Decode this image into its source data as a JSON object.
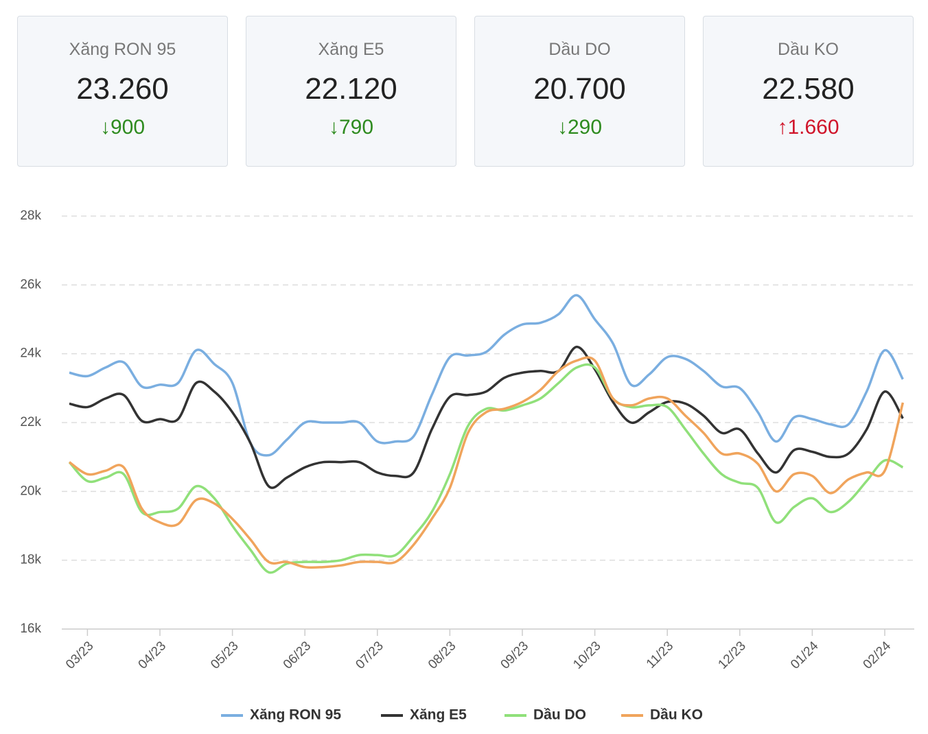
{
  "cards": [
    {
      "label": "Xăng RON 95",
      "value": "23.260",
      "change": "↓900",
      "direction": "down"
    },
    {
      "label": "Xăng E5",
      "value": "22.120",
      "change": "↓790",
      "direction": "down"
    },
    {
      "label": "Dầu DO",
      "value": "20.700",
      "change": "↓290",
      "direction": "down"
    },
    {
      "label": "Dầu KO",
      "value": "22.580",
      "change": "↑1.660",
      "direction": "up"
    }
  ],
  "chart_data": {
    "type": "line",
    "categories": [
      null,
      "03/23",
      null,
      null,
      null,
      "04/23",
      null,
      null,
      null,
      "05/23",
      null,
      null,
      null,
      "06/23",
      null,
      null,
      null,
      "07/23",
      null,
      null,
      null,
      "08/23",
      null,
      null,
      null,
      "09/23",
      null,
      null,
      null,
      "10/23",
      null,
      null,
      null,
      "11/23",
      null,
      null,
      null,
      "12/23",
      null,
      null,
      null,
      "01/24",
      null,
      null,
      null,
      "02/24",
      null
    ],
    "ylim": [
      16000,
      28000
    ],
    "yticks": [
      {
        "value": 16000,
        "label": "16k"
      },
      {
        "value": 18000,
        "label": "18k"
      },
      {
        "value": 20000,
        "label": "20k"
      },
      {
        "value": 22000,
        "label": "22k"
      },
      {
        "value": 24000,
        "label": "24k"
      },
      {
        "value": 26000,
        "label": "26k"
      },
      {
        "value": 28000,
        "label": "28k"
      }
    ],
    "grid": true,
    "legend": "bottom",
    "series": [
      {
        "name": "Xăng RON 95",
        "color": "#7aaee0",
        "values": [
          23450,
          23350,
          23600,
          23750,
          23050,
          23100,
          23150,
          24100,
          23700,
          23150,
          21400,
          21050,
          21500,
          22000,
          22000,
          22000,
          22000,
          21450,
          21450,
          21600,
          22800,
          23900,
          23950,
          24050,
          24550,
          24850,
          24900,
          25150,
          25700,
          25000,
          24300,
          23100,
          23400,
          23900,
          23850,
          23500,
          23050,
          23000,
          22300,
          21450,
          22150,
          22100,
          21950,
          21950,
          22900,
          24100,
          23260
        ]
      },
      {
        "name": "Xăng E5",
        "color": "#333333",
        "values": [
          22550,
          22450,
          22700,
          22800,
          22050,
          22100,
          22100,
          23150,
          22900,
          22300,
          21400,
          20150,
          20400,
          20700,
          20850,
          20850,
          20850,
          20550,
          20450,
          20550,
          21800,
          22750,
          22800,
          22900,
          23300,
          23450,
          23500,
          23500,
          24200,
          23550,
          22600,
          22000,
          22300,
          22600,
          22550,
          22200,
          21700,
          21800,
          21100,
          20550,
          21200,
          21150,
          21000,
          21100,
          21800,
          22900,
          22120
        ]
      },
      {
        "name": "Dầu DO",
        "color": "#90e07a",
        "values": [
          20850,
          20300,
          20400,
          20500,
          19400,
          19400,
          19500,
          20150,
          19800,
          19000,
          18300,
          17650,
          17900,
          17950,
          17950,
          18000,
          18150,
          18150,
          18150,
          18700,
          19400,
          20500,
          21900,
          22400,
          22350,
          22500,
          22700,
          23150,
          23600,
          23600,
          22700,
          22450,
          22500,
          22450,
          21800,
          21100,
          20500,
          20250,
          20100,
          19100,
          19550,
          19800,
          19400,
          19700,
          20300,
          20900,
          20700
        ]
      },
      {
        "name": "Dầu KO",
        "color": "#f0a45c",
        "values": [
          20850,
          20500,
          20600,
          20700,
          19500,
          19100,
          19050,
          19750,
          19650,
          19200,
          18600,
          17950,
          17950,
          17800,
          17800,
          17850,
          17950,
          17950,
          17950,
          18450,
          19200,
          20100,
          21700,
          22300,
          22400,
          22600,
          22950,
          23500,
          23800,
          23800,
          22700,
          22500,
          22700,
          22700,
          22200,
          21700,
          21100,
          21100,
          20800,
          20000,
          20500,
          20450,
          19950,
          20350,
          20550,
          20600,
          22580
        ]
      }
    ]
  }
}
